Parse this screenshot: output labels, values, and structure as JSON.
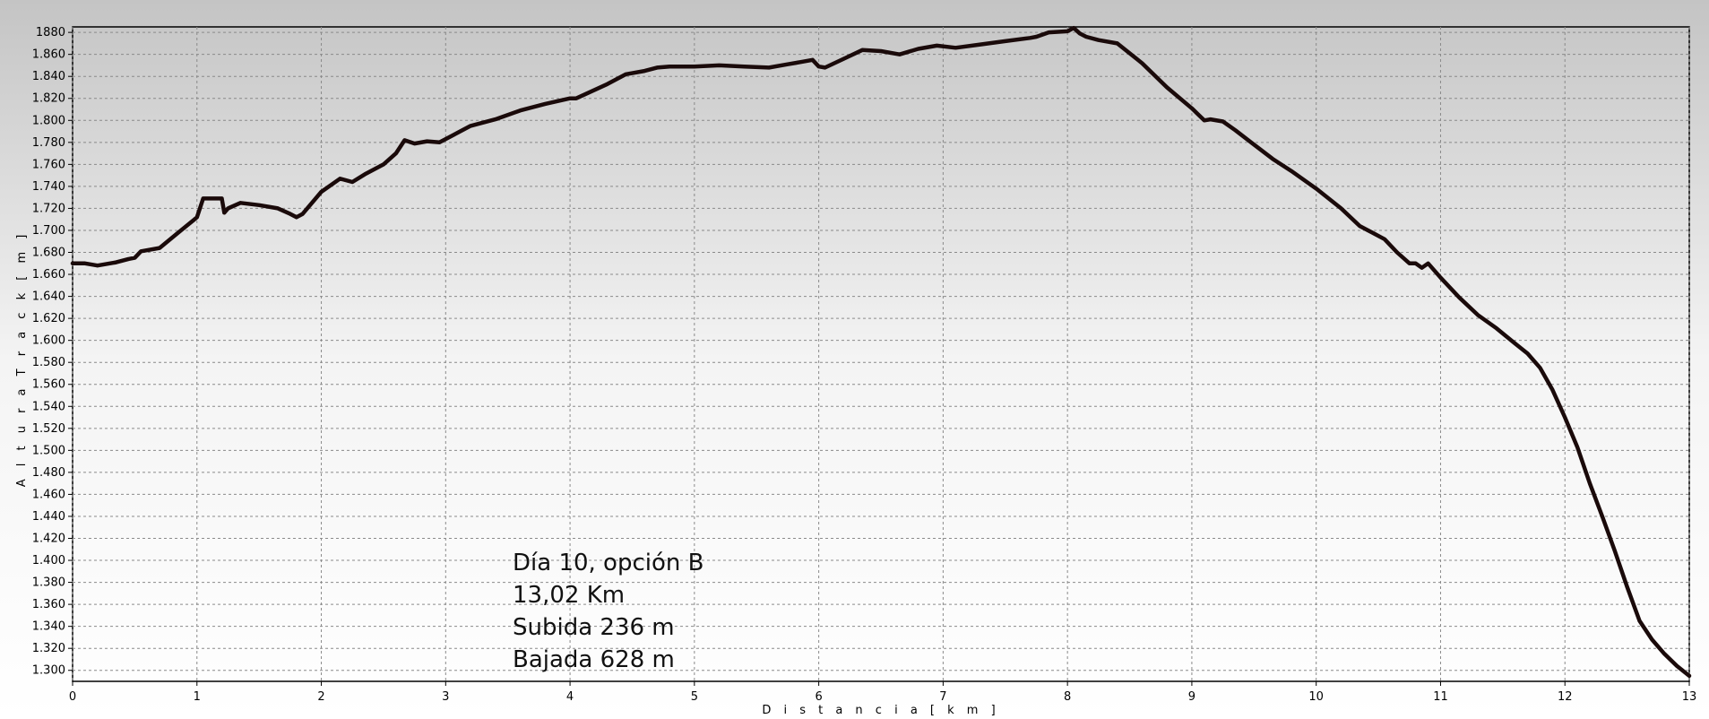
{
  "chart_data": {
    "type": "line",
    "title": "",
    "xlabel": "D i s t a n c i a   [ k m ]",
    "ylabel": "A l t u r a   T r a c k   [ m ]",
    "xlim": [
      0,
      13
    ],
    "ylim": [
      1290,
      1885
    ],
    "grid": true,
    "x_ticks": [
      0,
      1,
      2,
      3,
      4,
      5,
      6,
      7,
      8,
      9,
      10,
      11,
      12,
      13
    ],
    "x_tick_labels": [
      "0",
      "1",
      "2",
      "3",
      "4",
      "5",
      "6",
      "7",
      "8",
      "9",
      "10",
      "11",
      "12",
      "13"
    ],
    "y_ticks": [
      1300,
      1320,
      1340,
      1360,
      1380,
      1400,
      1420,
      1440,
      1460,
      1480,
      1500,
      1520,
      1540,
      1560,
      1580,
      1600,
      1620,
      1640,
      1660,
      1680,
      1700,
      1720,
      1740,
      1760,
      1780,
      1800,
      1820,
      1840,
      1860,
      1880
    ],
    "y_tick_labels": [
      "1.300",
      "1.320",
      "1.340",
      "1.360",
      "1.380",
      "1.400",
      "1.420",
      "1.440",
      "1.460",
      "1.480",
      "1.500",
      "1.520",
      "1.540",
      "1.560",
      "1.580",
      "1.600",
      "1.620",
      "1.640",
      "1.660",
      "1.680",
      "1.700",
      "1.720",
      "1.740",
      "1.760",
      "1.780",
      "1.800",
      "1.820",
      "1.840",
      "1.860",
      "1880"
    ],
    "series": [
      {
        "name": "",
        "color": "#1a0a0a",
        "x": [
          0.0,
          0.1,
          0.2,
          0.35,
          0.45,
          0.5,
          0.55,
          0.7,
          0.85,
          0.98,
          1.0,
          1.05,
          1.15,
          1.2,
          1.22,
          1.25,
          1.35,
          1.5,
          1.65,
          1.75,
          1.8,
          1.85,
          2.0,
          2.15,
          2.25,
          2.35,
          2.5,
          2.6,
          2.67,
          2.75,
          2.85,
          2.95,
          3.05,
          3.2,
          3.4,
          3.6,
          3.8,
          4.0,
          4.05,
          4.3,
          4.45,
          4.6,
          4.7,
          4.8,
          5.0,
          5.2,
          5.4,
          5.6,
          5.75,
          5.85,
          5.95,
          6.0,
          6.05,
          6.2,
          6.35,
          6.5,
          6.65,
          6.8,
          6.95,
          7.1,
          7.3,
          7.5,
          7.7,
          7.75,
          7.85,
          8.0,
          8.05,
          8.1,
          8.15,
          8.25,
          8.4,
          8.6,
          8.8,
          9.0,
          9.1,
          9.15,
          9.25,
          9.35,
          9.5,
          9.65,
          9.8,
          10.0,
          10.2,
          10.35,
          10.45,
          10.55,
          10.65,
          10.75,
          10.8,
          10.85,
          10.9,
          11.0,
          11.15,
          11.3,
          11.45,
          11.6,
          11.7,
          11.8,
          11.9,
          12.0,
          12.1,
          12.2,
          12.3,
          12.4,
          12.5,
          12.6,
          12.7,
          12.8,
          12.9,
          13.0
        ],
        "y": [
          1670,
          1670,
          1668,
          1671,
          1674,
          1675,
          1681,
          1684,
          1698,
          1710,
          1712,
          1729,
          1729,
          1729,
          1716,
          1720,
          1725,
          1723,
          1720,
          1715,
          1712,
          1715,
          1735,
          1747,
          1744,
          1751,
          1760,
          1770,
          1782,
          1779,
          1781,
          1780,
          1786,
          1795,
          1801,
          1809,
          1815,
          1820,
          1820,
          1833,
          1842,
          1845,
          1848,
          1849,
          1849,
          1850,
          1849,
          1848,
          1851,
          1853,
          1855,
          1849,
          1848,
          1856,
          1864,
          1863,
          1860,
          1865,
          1868,
          1866,
          1869,
          1872,
          1875,
          1876,
          1880,
          1881,
          1884,
          1879,
          1876,
          1873,
          1870,
          1852,
          1830,
          1811,
          1800,
          1801,
          1799,
          1791,
          1778,
          1765,
          1754,
          1738,
          1720,
          1704,
          1698,
          1692,
          1680,
          1670,
          1670,
          1666,
          1670,
          1657,
          1639,
          1623,
          1611,
          1597,
          1588,
          1575,
          1555,
          1530,
          1503,
          1470,
          1440,
          1409,
          1376,
          1345,
          1328,
          1315,
          1304,
          1295
        ]
      }
    ]
  },
  "annotation": {
    "lines": [
      "Día 10, opción B",
      "13,02 Km",
      "Subida 236 m",
      "Bajada 628 m"
    ]
  }
}
